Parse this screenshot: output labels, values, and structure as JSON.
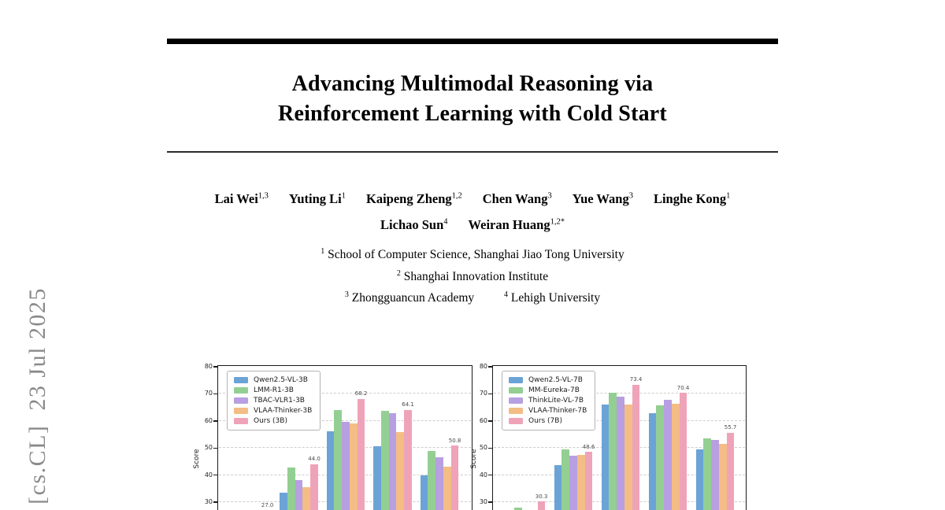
{
  "watermark": {
    "text": "[cs.CL]  23 Jul 2025",
    "color": "#8a8a8a"
  },
  "header": {
    "title_line1": "Advancing Multimodal Reasoning via",
    "title_line2": "Reinforcement Learning with Cold Start"
  },
  "authors": {
    "line1": [
      {
        "name": "Lai Wei",
        "sup": "1,3"
      },
      {
        "name": "Yuting Li",
        "sup": "1"
      },
      {
        "name": "Kaipeng Zheng",
        "sup": "1,2"
      },
      {
        "name": "Chen Wang",
        "sup": "3"
      },
      {
        "name": "Yue Wang",
        "sup": "3"
      },
      {
        "name": "Linghe Kong",
        "sup": "1"
      }
    ],
    "line2": [
      {
        "name": "Lichao Sun",
        "sup": "4"
      },
      {
        "name": "Weiran Huang",
        "sup": "1,2*"
      }
    ]
  },
  "affiliations": {
    "line1": {
      "sup": "1",
      "text": "School of Computer Science, Shanghai Jiao Tong University"
    },
    "line2": {
      "sup": "2",
      "text": "Shanghai Innovation Institute"
    },
    "line3a": {
      "sup": "3",
      "text": "Zhongguancun Academy"
    },
    "line3b": {
      "sup": "4",
      "text": "Lehigh University"
    }
  },
  "chart_data": [
    {
      "id": "left-3b",
      "type": "bar",
      "title": "",
      "xlabel": "",
      "ylabel": "Score",
      "yticks": [
        30,
        40,
        50,
        60,
        70,
        80
      ],
      "ylim_visible": [
        27,
        80
      ],
      "grid": "dashed-horizontal",
      "legend_position": "upper left",
      "x_tick_labels_visible": false,
      "categories": [
        "",
        "",
        "",
        "",
        ""
      ],
      "series": [
        {
          "name": "Qwen2.5-VL-3B",
          "color": "#6ba3d6",
          "values": [
            null,
            33.5,
            56.1,
            50.7,
            40.0
          ]
        },
        {
          "name": "LMM-R1-3B",
          "color": "#93cf93",
          "values": [
            null,
            42.7,
            63.9,
            63.8,
            49.0
          ]
        },
        {
          "name": "TBAC-VLR1-3B",
          "color": "#b89fe1",
          "values": [
            null,
            38.1,
            59.8,
            63.0,
            46.5
          ]
        },
        {
          "name": "VLAA-Thinker-3B",
          "color": "#f3bd85",
          "values": [
            null,
            35.4,
            59.2,
            55.9,
            43.2
          ]
        },
        {
          "name": "Ours (3B)",
          "color": "#efa3b8",
          "values": [
            27.0,
            44.0,
            68.2,
            64.1,
            50.8
          ],
          "bar_labels": [
            "27.0",
            "44.0",
            "68.2",
            "64.1",
            "50.8"
          ]
        }
      ]
    },
    {
      "id": "right-7b",
      "type": "bar",
      "title": "",
      "xlabel": "",
      "ylabel": "Score",
      "yticks": [
        30,
        40,
        50,
        60,
        70,
        80
      ],
      "ylim_visible": [
        27,
        80
      ],
      "grid": "dashed-horizontal",
      "legend_position": "upper left",
      "x_tick_labels_visible": false,
      "categories": [
        "",
        "",
        "",
        "",
        ""
      ],
      "series": [
        {
          "name": "Qwen2.5-VL-7B",
          "color": "#6ba3d6",
          "values": [
            null,
            43.8,
            66.2,
            62.8,
            49.5
          ]
        },
        {
          "name": "MM-Eureka-7B",
          "color": "#93cf93",
          "values": [
            28.0,
            49.4,
            70.3,
            65.8,
            53.5
          ]
        },
        {
          "name": "ThinkLite-VL-7B",
          "color": "#b89fe1",
          "values": [
            null,
            47.3,
            68.9,
            67.9,
            53.1
          ]
        },
        {
          "name": "VLAA-Thinker-7B",
          "color": "#f3bd85",
          "values": [
            null,
            47.4,
            66.1,
            66.4,
            51.6
          ]
        },
        {
          "name": "Ours (7B)",
          "color": "#efa3b8",
          "values": [
            30.3,
            48.6,
            73.4,
            70.4,
            55.7
          ],
          "bar_labels": [
            "30.3",
            "48.6",
            "73.4",
            "70.4",
            "55.7"
          ]
        }
      ]
    }
  ]
}
